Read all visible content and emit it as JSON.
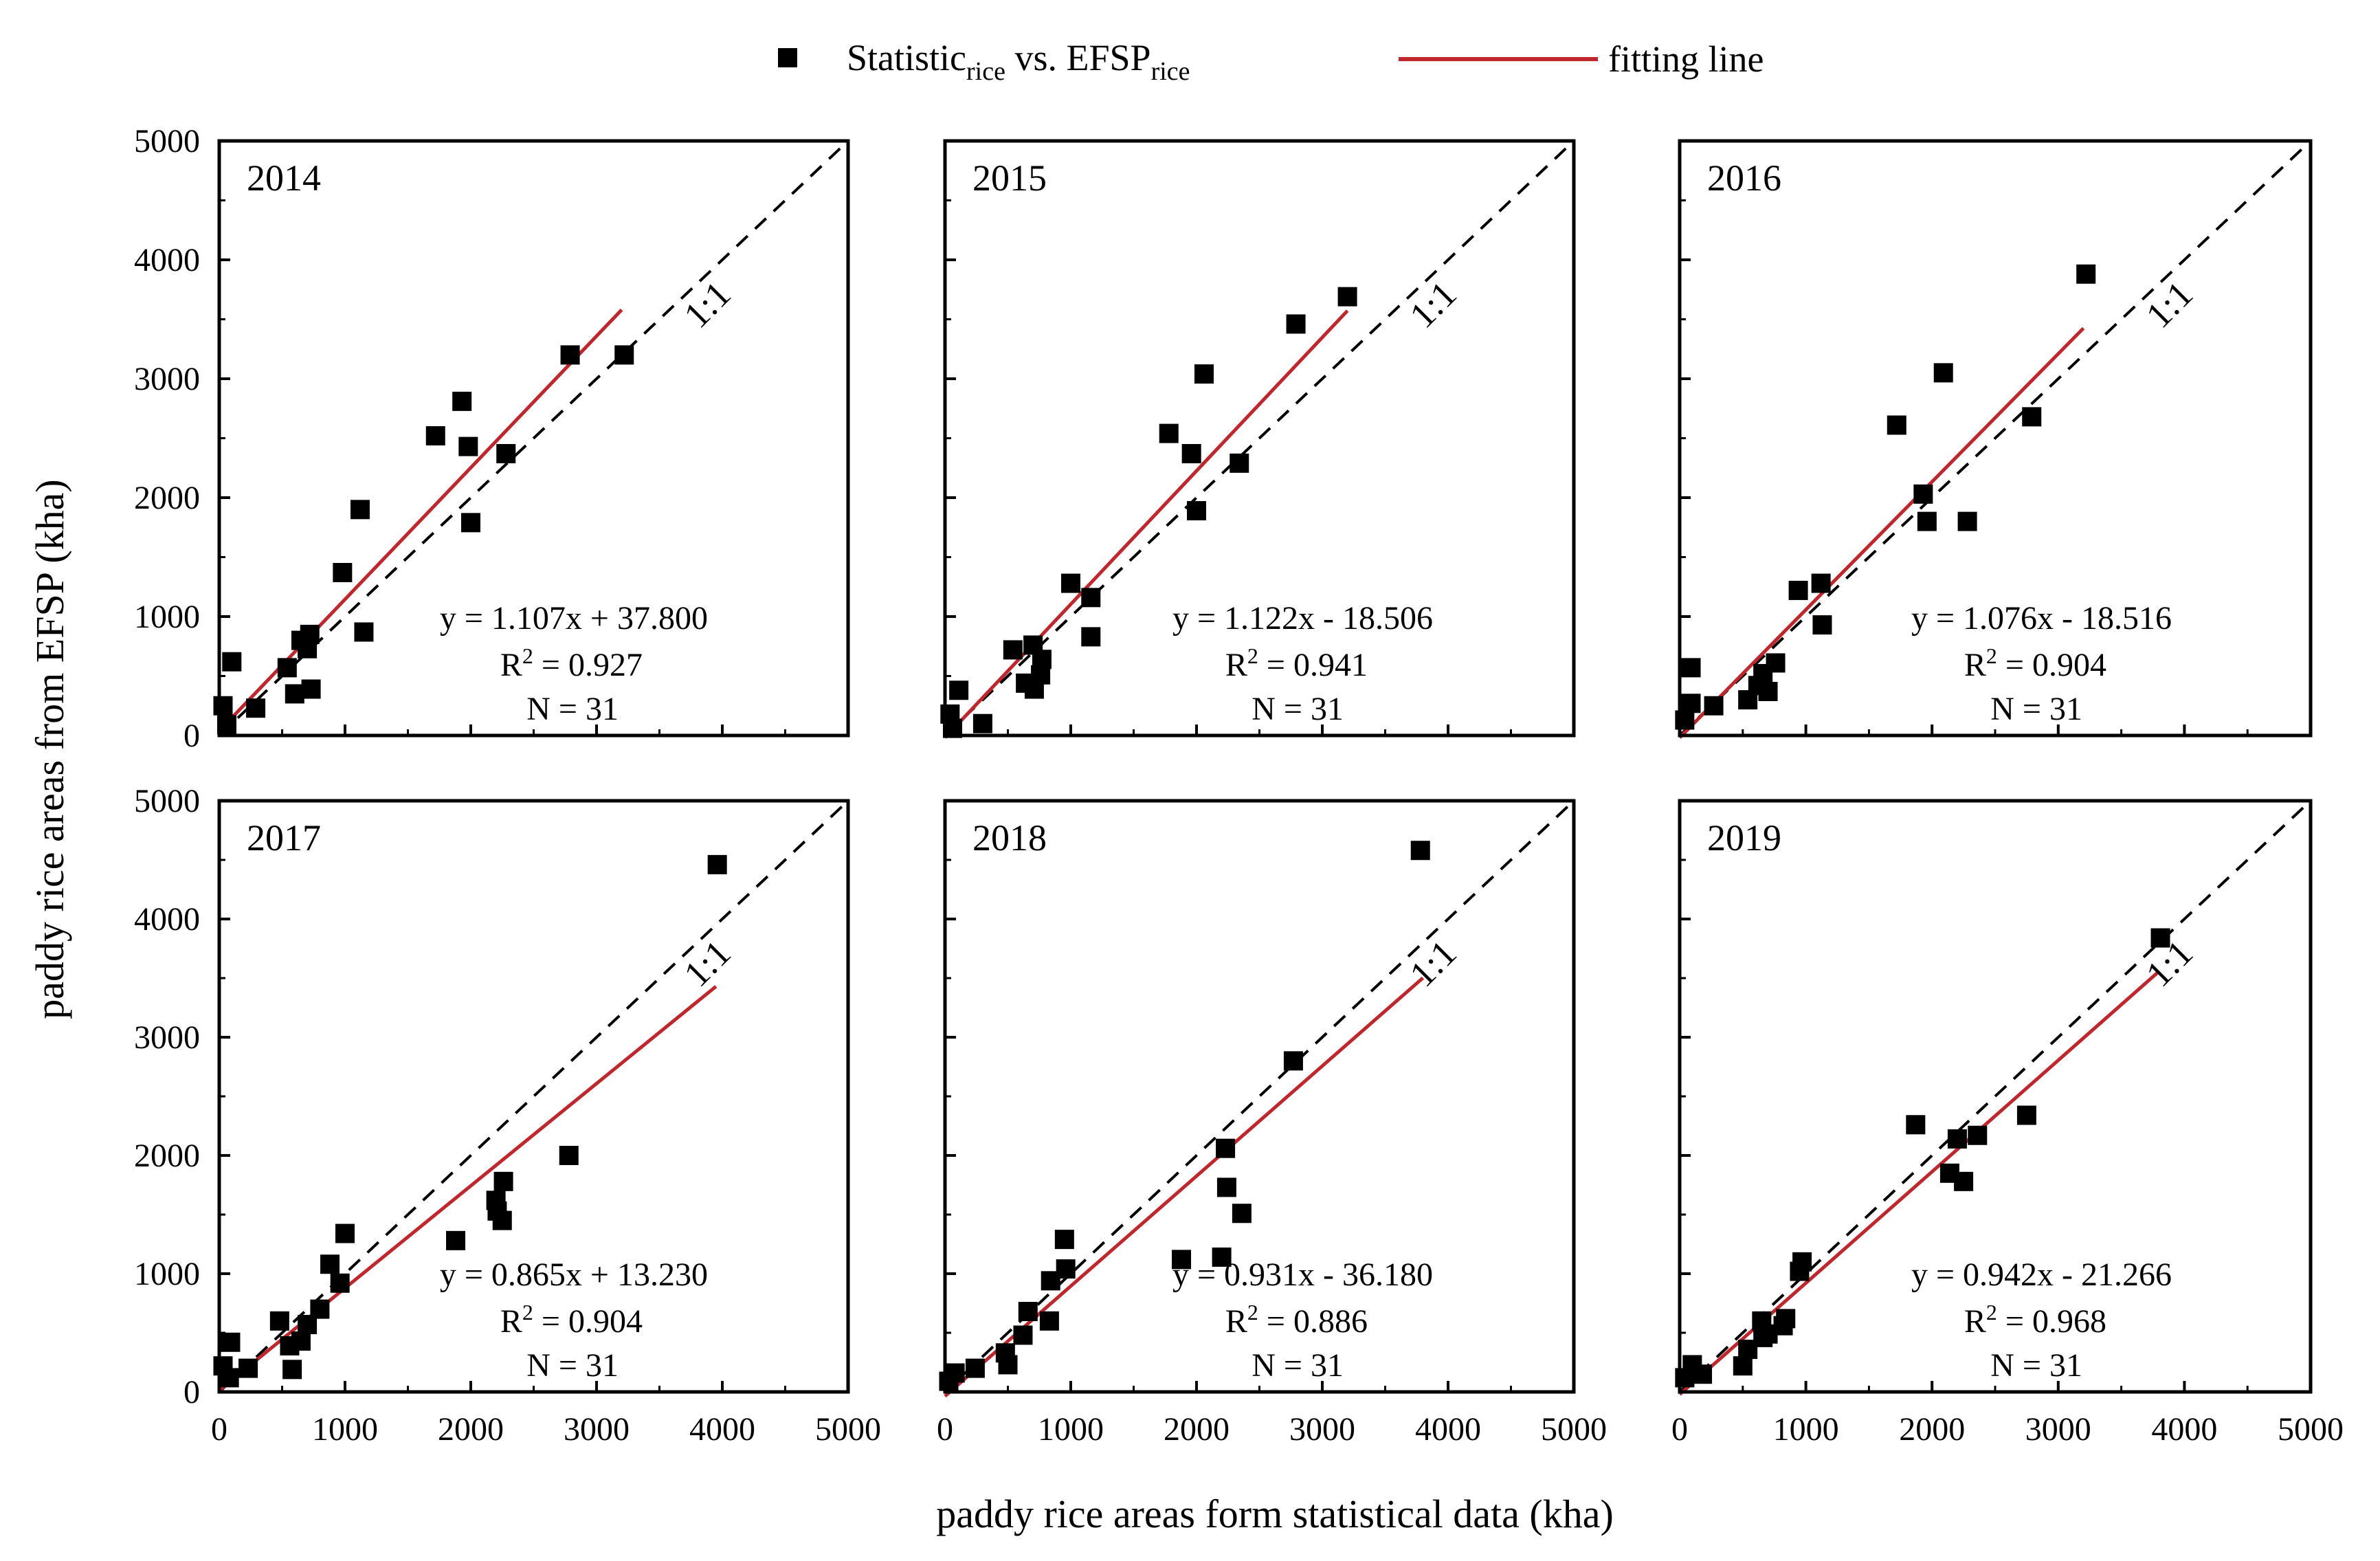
{
  "legend": {
    "marker_label": "Statistic",
    "marker_sub1": "rice",
    "marker_mid": " vs. EFSP",
    "marker_sub2": "rice",
    "line_label": "fitting line",
    "line_color": "#c0262c"
  },
  "axes": {
    "ylabel": "paddy rice areas from EFSP (kha)",
    "xlabel": "paddy rice areas form statistical data (kha)",
    "ticks": [
      "0",
      "1000",
      "2000",
      "3000",
      "4000",
      "5000"
    ]
  },
  "chart_data": [
    {
      "type": "scatter",
      "title": "2014",
      "xlim": [
        0,
        5000
      ],
      "ylim": [
        0,
        5000
      ],
      "identity_label": "1:1",
      "fit": {
        "slope": 1.107,
        "intercept": 37.8,
        "x_range": [
          0,
          3200
        ]
      },
      "stats": {
        "eq": "y = 1.107x + 37.800",
        "r2_prefix": "R",
        "r2_value": " = 0.927",
        "n": "N = 31"
      },
      "points": [
        [
          30,
          250
        ],
        [
          100,
          620
        ],
        [
          60,
          90
        ],
        [
          290,
          230
        ],
        [
          540,
          570
        ],
        [
          600,
          350
        ],
        [
          650,
          800
        ],
        [
          700,
          730
        ],
        [
          720,
          850
        ],
        [
          730,
          390
        ],
        [
          980,
          1370
        ],
        [
          1120,
          1900
        ],
        [
          1150,
          870
        ],
        [
          1720,
          2520
        ],
        [
          1930,
          2810
        ],
        [
          1980,
          2430
        ],
        [
          2000,
          1790
        ],
        [
          2280,
          2370
        ],
        [
          2790,
          3200
        ],
        [
          3220,
          3200
        ]
      ]
    },
    {
      "type": "scatter",
      "title": "2015",
      "xlim": [
        0,
        5000
      ],
      "ylim": [
        0,
        5000
      ],
      "identity_label": "1:1",
      "fit": {
        "slope": 1.122,
        "intercept": -18.506,
        "x_range": [
          0,
          3200
        ]
      },
      "stats": {
        "eq": "y = 1.122x - 18.506",
        "r2_prefix": "R",
        "r2_value": " = 0.941",
        "n": "N = 31"
      },
      "points": [
        [
          40,
          180
        ],
        [
          110,
          380
        ],
        [
          60,
          60
        ],
        [
          300,
          100
        ],
        [
          540,
          720
        ],
        [
          640,
          440
        ],
        [
          700,
          760
        ],
        [
          710,
          390
        ],
        [
          760,
          510
        ],
        [
          770,
          640
        ],
        [
          1000,
          1280
        ],
        [
          1160,
          1160
        ],
        [
          1160,
          830
        ],
        [
          1780,
          2540
        ],
        [
          1960,
          2370
        ],
        [
          2000,
          1890
        ],
        [
          2060,
          3040
        ],
        [
          2340,
          2290
        ],
        [
          2790,
          3460
        ],
        [
          3200,
          3690
        ]
      ]
    },
    {
      "type": "scatter",
      "title": "2016",
      "xlim": [
        0,
        5000
      ],
      "ylim": [
        0,
        5000
      ],
      "identity_label": "1:1",
      "fit": {
        "slope": 1.076,
        "intercept": -18.516,
        "x_range": [
          0,
          3200
        ]
      },
      "stats": {
        "eq": "y = 1.076x - 18.516",
        "r2_prefix": "R",
        "r2_value": " = 0.904",
        "n": "N = 31"
      },
      "points": [
        [
          40,
          130
        ],
        [
          90,
          570
        ],
        [
          90,
          270
        ],
        [
          270,
          250
        ],
        [
          540,
          300
        ],
        [
          620,
          420
        ],
        [
          660,
          520
        ],
        [
          700,
          370
        ],
        [
          760,
          610
        ],
        [
          940,
          1220
        ],
        [
          1120,
          1280
        ],
        [
          1130,
          930
        ],
        [
          1720,
          2610
        ],
        [
          1930,
          2030
        ],
        [
          1960,
          1800
        ],
        [
          2090,
          3050
        ],
        [
          2280,
          1800
        ],
        [
          2790,
          2680
        ],
        [
          3220,
          3880
        ]
      ]
    },
    {
      "type": "scatter",
      "title": "2017",
      "xlim": [
        0,
        5000
      ],
      "ylim": [
        0,
        5000
      ],
      "identity_label": "1:1",
      "fit": {
        "slope": 0.865,
        "intercept": 13.23,
        "x_range": [
          0,
          3950
        ]
      },
      "stats": {
        "eq": "y = 0.865x + 13.230",
        "r2_prefix": "R",
        "r2_value": " = 0.904",
        "n": "N = 31"
      },
      "points": [
        [
          30,
          220
        ],
        [
          90,
          420
        ],
        [
          80,
          120
        ],
        [
          230,
          200
        ],
        [
          480,
          600
        ],
        [
          560,
          390
        ],
        [
          580,
          190
        ],
        [
          650,
          430
        ],
        [
          700,
          570
        ],
        [
          800,
          700
        ],
        [
          880,
          1080
        ],
        [
          960,
          920
        ],
        [
          1000,
          1340
        ],
        [
          1880,
          1280
        ],
        [
          2200,
          1620
        ],
        [
          2210,
          1530
        ],
        [
          2250,
          1450
        ],
        [
          2260,
          1780
        ],
        [
          2780,
          2000
        ],
        [
          3960,
          4460
        ]
      ]
    },
    {
      "type": "scatter",
      "title": "2018",
      "xlim": [
        0,
        5000
      ],
      "ylim": [
        0,
        5000
      ],
      "identity_label": "1:1",
      "fit": {
        "slope": 0.931,
        "intercept": -36.18,
        "x_range": [
          0,
          3800
        ]
      },
      "stats": {
        "eq": "y = 0.931x - 36.180",
        "r2_prefix": "R",
        "r2_value": " = 0.886",
        "n": "N = 31"
      },
      "points": [
        [
          30,
          90
        ],
        [
          80,
          160
        ],
        [
          240,
          200
        ],
        [
          480,
          330
        ],
        [
          500,
          230
        ],
        [
          620,
          480
        ],
        [
          660,
          680
        ],
        [
          830,
          600
        ],
        [
          840,
          940
        ],
        [
          950,
          1290
        ],
        [
          960,
          1040
        ],
        [
          1880,
          1120
        ],
        [
          2200,
          1140
        ],
        [
          2230,
          2060
        ],
        [
          2240,
          1730
        ],
        [
          2360,
          1510
        ],
        [
          2770,
          2800
        ],
        [
          3780,
          4580
        ]
      ]
    },
    {
      "type": "scatter",
      "title": "2019",
      "xlim": [
        0,
        5000
      ],
      "ylim": [
        0,
        5000
      ],
      "identity_label": "1:1",
      "fit": {
        "slope": 0.942,
        "intercept": -21.266,
        "x_range": [
          0,
          3800
        ]
      },
      "stats": {
        "eq": "y = 0.942x - 21.266",
        "r2_prefix": "R",
        "r2_value": " = 0.968",
        "n": "N = 31"
      },
      "points": [
        [
          40,
          120
        ],
        [
          100,
          230
        ],
        [
          180,
          150
        ],
        [
          500,
          220
        ],
        [
          540,
          360
        ],
        [
          650,
          600
        ],
        [
          660,
          460
        ],
        [
          700,
          490
        ],
        [
          820,
          560
        ],
        [
          840,
          620
        ],
        [
          950,
          1020
        ],
        [
          970,
          1100
        ],
        [
          1870,
          2260
        ],
        [
          2140,
          1850
        ],
        [
          2200,
          2140
        ],
        [
          2250,
          1780
        ],
        [
          2360,
          2170
        ],
        [
          2750,
          2340
        ],
        [
          3810,
          3840
        ]
      ]
    }
  ]
}
